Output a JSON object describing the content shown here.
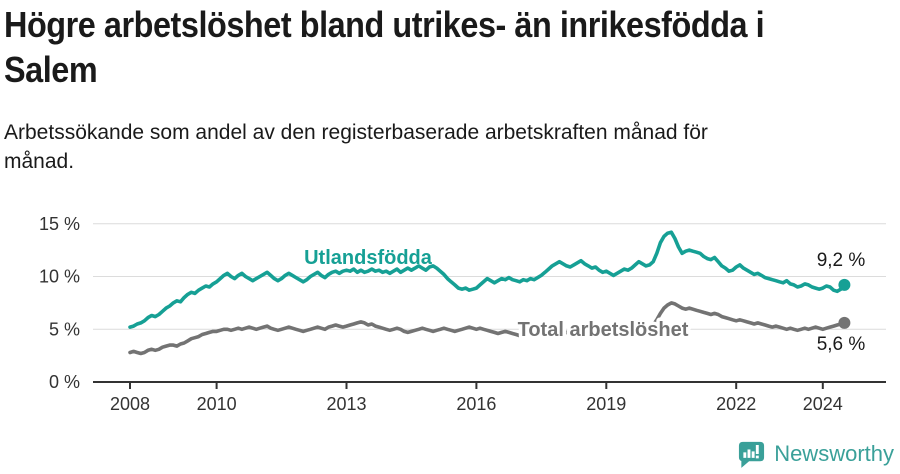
{
  "header": {
    "title": "Högre arbetslöshet bland utrikes- än inrikesfödda i Salem",
    "subtitle": "Arbetssökande som andel av den registerbaserade arbetskraften månad för månad."
  },
  "chart_data": {
    "type": "line",
    "title": "Högre arbetslöshet bland utrikes- än inrikesfödda i Salem",
    "subtitle": "Arbetssökande som andel av den registerbaserade arbetskraften månad för månad.",
    "x_unit": "month",
    "x_start_year": 2008,
    "x_range": [
      "2008-01",
      "2024-07"
    ],
    "xlabel": "",
    "ylabel": "%",
    "ylim": [
      0,
      15.5
    ],
    "grid": "horizontal",
    "x_ticks": [
      2008,
      2010,
      2013,
      2016,
      2019,
      2022,
      2024
    ],
    "y_ticks": [
      {
        "value": 0,
        "label": "0 %"
      },
      {
        "value": 5,
        "label": "5 %"
      },
      {
        "value": 10,
        "label": "10 %"
      },
      {
        "value": 15,
        "label": "15 %"
      }
    ],
    "series": [
      {
        "name": "Utlandsfödda",
        "color": "#16a095",
        "end_label": "9,2 %",
        "end_value": 9.2,
        "values": [
          5.2,
          5.3,
          5.5,
          5.6,
          5.8,
          6.1,
          6.3,
          6.2,
          6.4,
          6.7,
          7.0,
          7.2,
          7.5,
          7.7,
          7.6,
          8.0,
          8.3,
          8.5,
          8.4,
          8.7,
          8.9,
          9.1,
          9.0,
          9.3,
          9.5,
          9.8,
          10.1,
          10.3,
          10.0,
          9.8,
          10.1,
          10.3,
          10.0,
          9.8,
          9.6,
          9.8,
          10.0,
          10.2,
          10.4,
          10.1,
          9.8,
          9.6,
          9.8,
          10.1,
          10.3,
          10.1,
          9.9,
          9.7,
          9.5,
          9.7,
          10.0,
          10.2,
          10.4,
          10.1,
          9.9,
          10.2,
          10.4,
          10.5,
          10.3,
          10.5,
          10.6,
          10.5,
          10.7,
          10.4,
          10.6,
          10.4,
          10.5,
          10.7,
          10.5,
          10.6,
          10.4,
          10.5,
          10.3,
          10.5,
          10.7,
          10.4,
          10.6,
          10.8,
          10.6,
          10.8,
          11.0,
          10.8,
          10.6,
          10.9,
          11.0,
          10.8,
          10.5,
          10.2,
          9.8,
          9.5,
          9.2,
          8.9,
          8.8,
          8.9,
          8.7,
          8.8,
          8.9,
          9.2,
          9.5,
          9.8,
          9.6,
          9.4,
          9.6,
          9.8,
          9.7,
          9.9,
          9.7,
          9.6,
          9.5,
          9.7,
          9.6,
          9.8,
          9.7,
          9.9,
          10.1,
          10.4,
          10.7,
          11.0,
          11.2,
          11.4,
          11.2,
          11.0,
          10.9,
          11.1,
          11.3,
          11.5,
          11.2,
          11.0,
          10.8,
          10.9,
          10.6,
          10.4,
          10.5,
          10.3,
          10.1,
          10.3,
          10.5,
          10.7,
          10.6,
          10.8,
          11.1,
          11.4,
          11.2,
          11.0,
          11.1,
          11.4,
          12.2,
          13.2,
          13.8,
          14.1,
          14.2,
          13.6,
          12.8,
          12.2,
          12.4,
          12.5,
          12.4,
          12.3,
          12.2,
          11.9,
          11.7,
          11.6,
          11.8,
          11.4,
          11.0,
          10.8,
          10.5,
          10.6,
          10.9,
          11.1,
          10.8,
          10.6,
          10.4,
          10.2,
          10.3,
          10.1,
          9.9,
          9.8,
          9.7,
          9.6,
          9.5,
          9.4,
          9.6,
          9.3,
          9.2,
          9.0,
          9.1,
          9.3,
          9.2,
          9.0,
          8.9,
          8.8,
          8.9,
          9.1,
          9.0,
          8.7,
          8.6,
          8.8,
          9.2
        ]
      },
      {
        "name": "Total arbetslöshet",
        "color": "#737373",
        "end_label": "5,6 %",
        "end_value": 5.6,
        "values": [
          2.8,
          2.9,
          2.8,
          2.7,
          2.8,
          3.0,
          3.1,
          3.0,
          3.1,
          3.3,
          3.4,
          3.5,
          3.5,
          3.4,
          3.6,
          3.7,
          3.9,
          4.1,
          4.2,
          4.3,
          4.5,
          4.6,
          4.7,
          4.8,
          4.8,
          4.9,
          5.0,
          5.0,
          4.9,
          5.0,
          5.1,
          5.0,
          5.1,
          5.2,
          5.1,
          5.0,
          5.1,
          5.2,
          5.3,
          5.1,
          5.0,
          4.9,
          5.0,
          5.1,
          5.2,
          5.1,
          5.0,
          4.9,
          4.8,
          4.9,
          5.0,
          5.1,
          5.2,
          5.1,
          5.0,
          5.2,
          5.3,
          5.4,
          5.3,
          5.2,
          5.3,
          5.4,
          5.5,
          5.6,
          5.7,
          5.6,
          5.4,
          5.5,
          5.3,
          5.2,
          5.1,
          5.0,
          4.9,
          5.0,
          5.1,
          5.0,
          4.8,
          4.7,
          4.8,
          4.9,
          5.0,
          5.1,
          5.0,
          4.9,
          4.8,
          4.9,
          5.0,
          5.1,
          5.0,
          4.9,
          4.8,
          4.9,
          5.0,
          5.1,
          5.2,
          5.1,
          5.0,
          5.1,
          5.0,
          4.9,
          4.8,
          4.7,
          4.6,
          4.7,
          4.8,
          4.7,
          4.6,
          4.5,
          4.4,
          4.5,
          4.6,
          4.5,
          4.4,
          4.5,
          4.6,
          4.7,
          4.6,
          4.7,
          4.8,
          4.7,
          4.6,
          4.7,
          4.8,
          4.7,
          4.6,
          4.5,
          4.6,
          4.7,
          4.8,
          4.7,
          4.6,
          4.7,
          4.8,
          4.7,
          4.6,
          4.7,
          4.8,
          4.9,
          5.0,
          4.9,
          4.8,
          4.9,
          5.0,
          5.1,
          5.2,
          5.4,
          5.9,
          6.5,
          7.0,
          7.3,
          7.5,
          7.4,
          7.2,
          7.0,
          6.9,
          7.0,
          6.9,
          6.8,
          6.7,
          6.6,
          6.5,
          6.4,
          6.5,
          6.4,
          6.2,
          6.1,
          6.0,
          5.9,
          5.8,
          5.9,
          5.8,
          5.7,
          5.6,
          5.5,
          5.6,
          5.5,
          5.4,
          5.3,
          5.2,
          5.3,
          5.2,
          5.1,
          5.0,
          5.1,
          5.0,
          4.9,
          5.0,
          5.1,
          5.0,
          5.1,
          5.2,
          5.1,
          5.0,
          5.1,
          5.2,
          5.3,
          5.4,
          5.5,
          5.6
        ]
      }
    ]
  },
  "footer": {
    "brand": "Newsworthy",
    "brand_color": "#3aa099"
  }
}
